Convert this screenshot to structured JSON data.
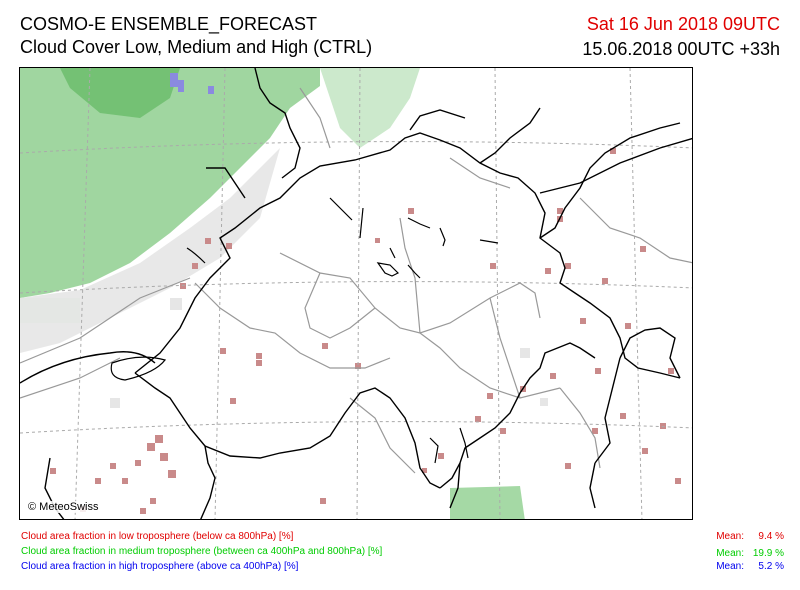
{
  "header": {
    "title_line1": "COSMO-E ENSEMBLE_FORECAST",
    "title_line2": "Cloud Cover Low, Medium and High (CTRL)",
    "valid_time": "Sat 16 Jun 2018 09UTC",
    "init_time": "15.06.2018 00UTC +33h"
  },
  "map": {
    "copyright": "© MeteoSwiss",
    "colors": {
      "low": "#e00000",
      "low_fill": "#c98a8a",
      "medium": "#00cc00",
      "medium_fill": "#8fcf8f",
      "high": "#0000ee",
      "high_fill": "#8a8ae0",
      "border": "#000000",
      "cantons": "#999999",
      "grid": "#aaaaaa"
    }
  },
  "legend": [
    {
      "id": "low",
      "text": "Cloud area fraction in low troposphere (below ca 800hPa) [%]",
      "mean_label": "Mean:",
      "mean_value": "9.4 %"
    },
    {
      "id": "medium",
      "text": "Cloud area fraction in medium troposphere (between ca 400hPa and 800hPa) [%]",
      "mean_label": "Mean:",
      "mean_value": "19.9 %"
    },
    {
      "id": "high",
      "text": "Cloud area fraction in high troposphere (above ca 400hPa) [%]",
      "mean_label": "Mean:",
      "mean_value": "5.2 %"
    }
  ]
}
